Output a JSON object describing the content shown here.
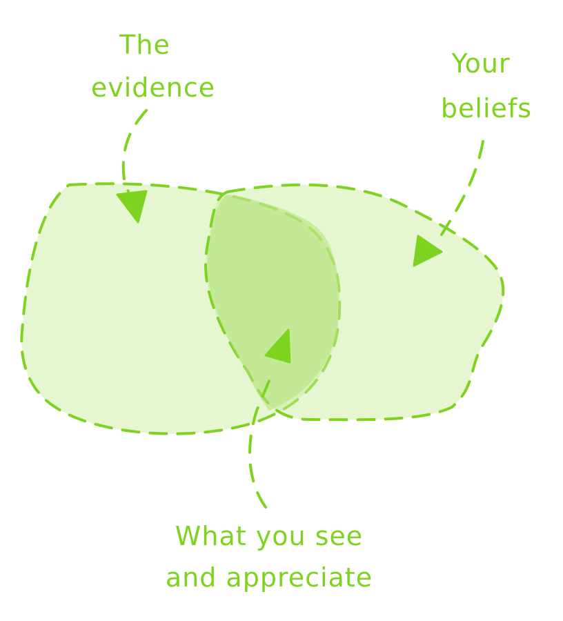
{
  "colors": {
    "stroke": "#7ED321",
    "fill": "#C8EC9A",
    "overlap_fill": "#B4E27A",
    "text": "#7ED321"
  },
  "labels": {
    "evidence_line1": "The",
    "evidence_line2": "evidence",
    "beliefs_line1": "Your",
    "beliefs_line2": "beliefs",
    "overlap_line1": "What you see",
    "overlap_line2": "and appreciate"
  }
}
